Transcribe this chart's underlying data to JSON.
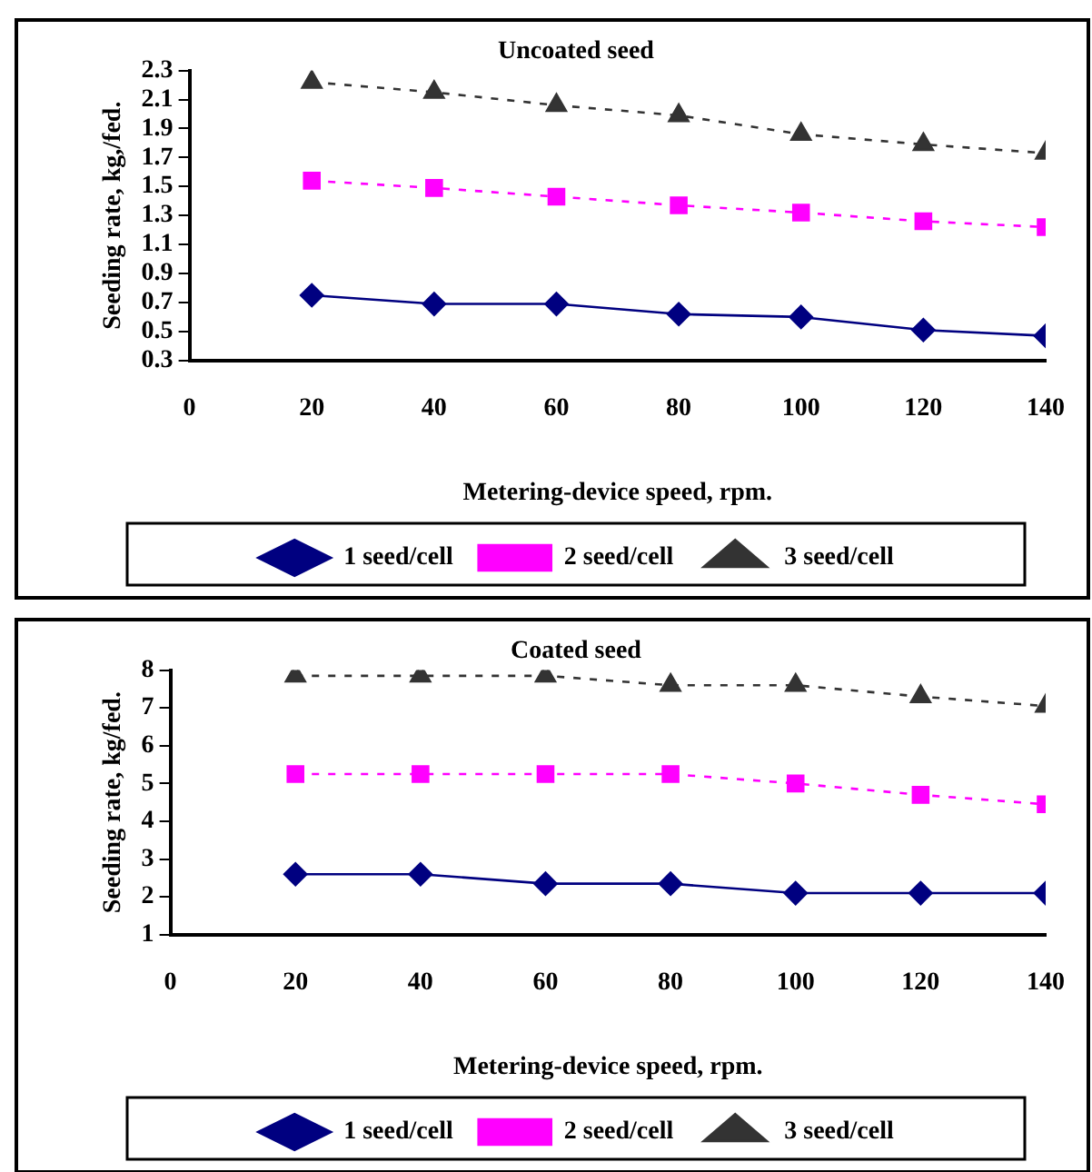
{
  "chart_data": [
    {
      "type": "line",
      "title": "Uncoated seed",
      "xlabel": "Metering-device speed, rpm.",
      "ylabel": "Seeding rate, kg,/fed.",
      "x": [
        20,
        40,
        60,
        80,
        100,
        120,
        140
      ],
      "xlim": [
        0,
        140
      ],
      "xticks": [
        0,
        20,
        40,
        60,
        80,
        100,
        120,
        140
      ],
      "ylim": [
        0.3,
        2.3
      ],
      "yticks": [
        0.3,
        0.5,
        0.7,
        0.9,
        1.1,
        1.3,
        1.5,
        1.7,
        1.9,
        2.1,
        2.3
      ],
      "grid": false,
      "legend": "bottom",
      "series": [
        {
          "name": "1 seed/cell",
          "color": "#000080",
          "marker": "diamond",
          "line_style": "solid",
          "values": [
            0.75,
            0.69,
            0.69,
            0.62,
            0.6,
            0.51,
            0.47
          ]
        },
        {
          "name": "2 seed/cell",
          "color": "#ff00ff",
          "marker": "square",
          "line_style": "dashed",
          "values": [
            1.54,
            1.49,
            1.43,
            1.37,
            1.32,
            1.26,
            1.22
          ]
        },
        {
          "name": "3 seed/cell",
          "color": "#333333",
          "marker": "triangle",
          "line_style": "dashed",
          "values": [
            2.22,
            2.15,
            2.06,
            1.99,
            1.86,
            1.79,
            1.73
          ]
        }
      ]
    },
    {
      "type": "line",
      "title": "Coated seed",
      "xlabel": "Metering-device speed, rpm.",
      "ylabel": "Seeding rate, kg/fed.",
      "x": [
        20,
        40,
        60,
        80,
        100,
        120,
        140
      ],
      "xlim": [
        0,
        140
      ],
      "xticks": [
        0,
        20,
        40,
        60,
        80,
        100,
        120,
        140
      ],
      "ylim": [
        1,
        8
      ],
      "yticks": [
        1,
        2,
        3,
        4,
        5,
        6,
        7,
        8
      ],
      "grid": false,
      "legend": "bottom",
      "series": [
        {
          "name": "1 seed/cell",
          "color": "#000080",
          "marker": "diamond",
          "line_style": "solid",
          "values": [
            2.6,
            2.6,
            2.35,
            2.35,
            2.1,
            2.1,
            2.1
          ]
        },
        {
          "name": "2 seed/cell",
          "color": "#ff00ff",
          "marker": "square",
          "line_style": "dashed",
          "values": [
            5.25,
            5.25,
            5.25,
            5.25,
            5.0,
            4.7,
            4.45
          ]
        },
        {
          "name": "3 seed/cell",
          "color": "#333333",
          "marker": "triangle",
          "line_style": "dashed",
          "values": [
            7.85,
            7.85,
            7.85,
            7.6,
            7.6,
            7.3,
            7.05
          ]
        }
      ]
    }
  ]
}
